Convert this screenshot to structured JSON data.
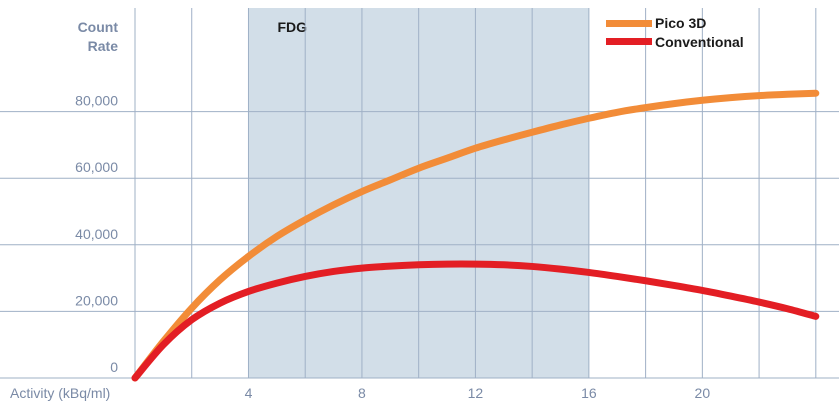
{
  "chart_data": {
    "type": "line",
    "ylabel": [
      "Count",
      "Rate"
    ],
    "xlabel": "Activity (kBq/ml)",
    "xlim": [
      0,
      24.5
    ],
    "ylim": [
      0,
      100000
    ],
    "x_ticks": [
      4,
      8,
      12,
      16,
      20
    ],
    "y_ticks": [
      0,
      20000,
      40000,
      60000,
      80000
    ],
    "y_tick_labels": [
      "0",
      "20,000",
      "40,000",
      "60,000",
      "80,000"
    ],
    "shaded_band": {
      "label": "FDG",
      "from": 4,
      "to": 16,
      "color": "#d2dee8"
    },
    "grid": true,
    "legend_position": "top-right",
    "series": [
      {
        "name": "Pico 3D",
        "color": "#f28c38",
        "x": [
          0,
          1,
          2,
          3,
          4,
          5,
          6,
          7,
          8,
          9,
          10,
          11,
          12,
          13,
          14,
          15,
          16,
          17,
          18,
          19,
          20,
          21,
          22,
          23,
          24
        ],
        "y": [
          0,
          11000,
          21000,
          29500,
          36500,
          42500,
          47500,
          52000,
          56000,
          59500,
          63000,
          66000,
          69000,
          71500,
          73800,
          76000,
          78000,
          79800,
          81200,
          82400,
          83400,
          84200,
          84800,
          85200,
          85500
        ]
      },
      {
        "name": "Conventional",
        "color": "#e31e24",
        "x": [
          0,
          1,
          2,
          3,
          4,
          5,
          6,
          7,
          8,
          9,
          10,
          11,
          12,
          13,
          14,
          15,
          16,
          17,
          18,
          19,
          20,
          21,
          22,
          23,
          24
        ],
        "y": [
          0,
          10000,
          17500,
          22500,
          26000,
          28500,
          30500,
          32000,
          33000,
          33600,
          34000,
          34200,
          34200,
          34000,
          33500,
          32700,
          31700,
          30500,
          29200,
          27800,
          26300,
          24600,
          22800,
          20800,
          18500
        ]
      }
    ]
  }
}
